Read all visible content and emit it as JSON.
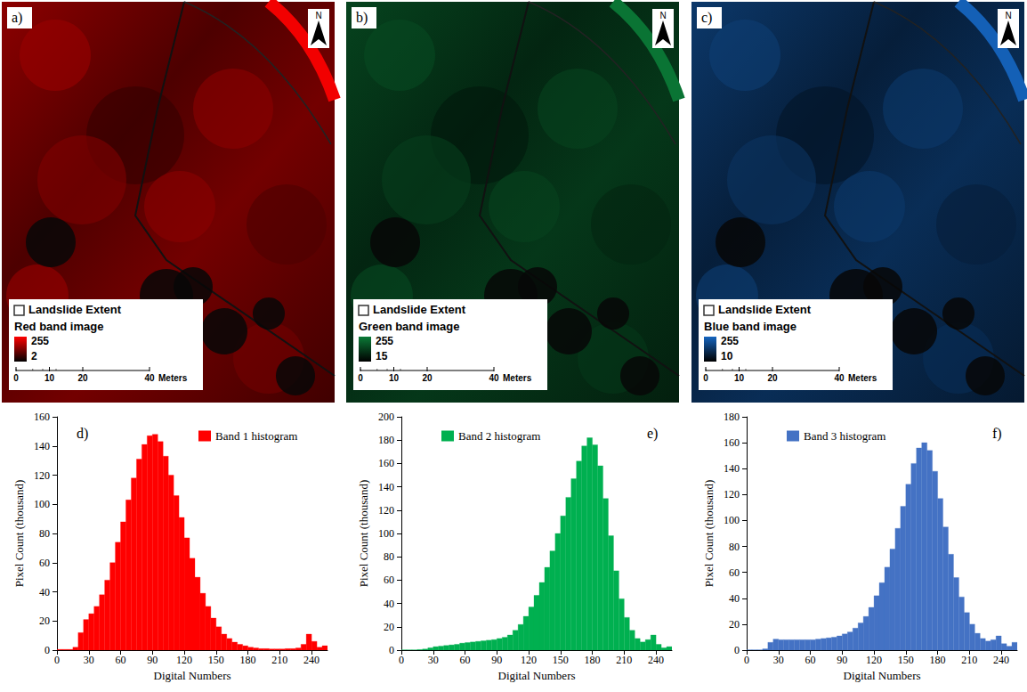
{
  "image_panels": [
    {
      "panel_label": "a)",
      "north": "N",
      "legend": {
        "extent": "Landslide Extent",
        "band_title": "Red band image",
        "max": 255,
        "min": 2,
        "color": "#ff0000"
      },
      "scale_bar": {
        "ticks": [
          0,
          10,
          20,
          40
        ],
        "unit": "Meters"
      }
    },
    {
      "panel_label": "b)",
      "north": "N",
      "legend": {
        "extent": "Landslide Extent",
        "band_title": "Green band image",
        "max": 255,
        "min": 15,
        "color": "#0b7a37"
      },
      "scale_bar": {
        "ticks": [
          0,
          10,
          20,
          40
        ],
        "unit": "Meters"
      }
    },
    {
      "panel_label": "c)",
      "north": "N",
      "legend": {
        "extent": "Landslide Extent",
        "band_title": "Blue band image",
        "max": 255,
        "min": 10,
        "color": "#1565c0"
      },
      "scale_bar": {
        "ticks": [
          0,
          10,
          20,
          40
        ],
        "unit": "Meters"
      }
    }
  ],
  "chart_data": [
    {
      "type": "histogram",
      "panel_label": "d)",
      "x_label": "Digital Numbers",
      "y_label": "Pixel Count (thousand)",
      "legend": "top-right",
      "grid": false,
      "bins": [
        0,
        5,
        10,
        15,
        20,
        25,
        30,
        35,
        40,
        45,
        50,
        55,
        60,
        65,
        70,
        75,
        80,
        85,
        90,
        95,
        100,
        105,
        110,
        115,
        120,
        125,
        130,
        135,
        140,
        145,
        150,
        155,
        160,
        165,
        170,
        175,
        180,
        185,
        190,
        195,
        200,
        205,
        210,
        215,
        220,
        225,
        230,
        235,
        240,
        245,
        250,
        255
      ],
      "series": [
        {
          "name": "Band 1 histogram",
          "color": "#ff0000",
          "values": [
            0.5,
            0.5,
            0.5,
            2,
            12,
            21,
            25,
            30,
            38,
            48,
            60,
            74,
            88,
            103,
            118,
            131,
            141,
            147,
            148,
            143,
            133,
            120,
            106,
            91,
            77,
            63,
            50,
            39,
            30,
            22,
            16,
            11,
            8,
            5.5,
            4,
            3,
            2,
            1.5,
            1,
            1,
            0.8,
            0.8,
            0.8,
            1,
            1,
            1.5,
            4,
            11,
            6,
            2,
            3
          ]
        }
      ],
      "xlim": [
        0,
        255
      ],
      "xticks": [
        0,
        30,
        60,
        90,
        120,
        150,
        180,
        210,
        240
      ],
      "ylim": [
        0,
        160
      ],
      "yticks": [
        0,
        20,
        40,
        60,
        80,
        100,
        120,
        140,
        160
      ]
    },
    {
      "type": "histogram",
      "panel_label": "e)",
      "x_label": "Digital Numbers",
      "y_label": "Pixel Count (thousand)",
      "legend": "top-left",
      "grid": false,
      "bins": [
        0,
        5,
        10,
        15,
        20,
        25,
        30,
        35,
        40,
        45,
        50,
        55,
        60,
        65,
        70,
        75,
        80,
        85,
        90,
        95,
        100,
        105,
        110,
        115,
        120,
        125,
        130,
        135,
        140,
        145,
        150,
        155,
        160,
        165,
        170,
        175,
        180,
        185,
        190,
        195,
        200,
        205,
        210,
        215,
        220,
        225,
        230,
        235,
        240,
        245,
        250,
        255
      ],
      "series": [
        {
          "name": "Band 2 histogram",
          "color": "#00b050",
          "values": [
            0.2,
            0.2,
            0.2,
            0.5,
            1,
            2,
            3,
            3.5,
            4,
            4.5,
            5,
            6,
            6.5,
            7,
            7.5,
            8,
            8.5,
            9,
            10,
            11,
            13,
            17,
            22,
            29,
            37,
            47,
            58,
            71,
            85,
            100,
            115,
            131,
            147,
            162,
            175,
            182,
            176,
            158,
            130,
            98,
            68,
            44,
            28,
            17,
            10,
            7,
            9,
            13,
            5,
            2,
            3
          ]
        }
      ],
      "xlim": [
        0,
        255
      ],
      "xticks": [
        0,
        30,
        60,
        90,
        120,
        150,
        180,
        210,
        240
      ],
      "ylim": [
        0,
        200
      ],
      "yticks": [
        0,
        20,
        40,
        60,
        80,
        100,
        120,
        140,
        160,
        180,
        200
      ]
    },
    {
      "type": "histogram",
      "panel_label": "f)",
      "x_label": "Digital Numbers",
      "y_label": "Pixel Count (thousand)",
      "legend": "top-left",
      "grid": false,
      "bins": [
        0,
        5,
        10,
        15,
        20,
        25,
        30,
        35,
        40,
        45,
        50,
        55,
        60,
        65,
        70,
        75,
        80,
        85,
        90,
        95,
        100,
        105,
        110,
        115,
        120,
        125,
        130,
        135,
        140,
        145,
        150,
        155,
        160,
        165,
        170,
        175,
        180,
        185,
        190,
        195,
        200,
        205,
        210,
        215,
        220,
        225,
        230,
        235,
        240,
        245,
        250,
        255
      ],
      "series": [
        {
          "name": "Band 3 histogram",
          "color": "#4472c4",
          "values": [
            0.2,
            0.2,
            0.2,
            1,
            6,
            8.5,
            8,
            8,
            8,
            8,
            8,
            8,
            8,
            8.5,
            9,
            9.5,
            10,
            11,
            12.5,
            14,
            17,
            21,
            26,
            33,
            42,
            52,
            64,
            78,
            94,
            111,
            128,
            144,
            156,
            160,
            154,
            138,
            117,
            95,
            74,
            56,
            41,
            29,
            20,
            13,
            9,
            7,
            8,
            11,
            5,
            3,
            6
          ]
        }
      ],
      "xlim": [
        0,
        255
      ],
      "xticks": [
        0,
        30,
        60,
        90,
        120,
        150,
        180,
        210,
        240
      ],
      "ylim": [
        0,
        180
      ],
      "yticks": [
        0,
        20,
        40,
        60,
        80,
        100,
        120,
        140,
        160,
        180
      ]
    }
  ]
}
